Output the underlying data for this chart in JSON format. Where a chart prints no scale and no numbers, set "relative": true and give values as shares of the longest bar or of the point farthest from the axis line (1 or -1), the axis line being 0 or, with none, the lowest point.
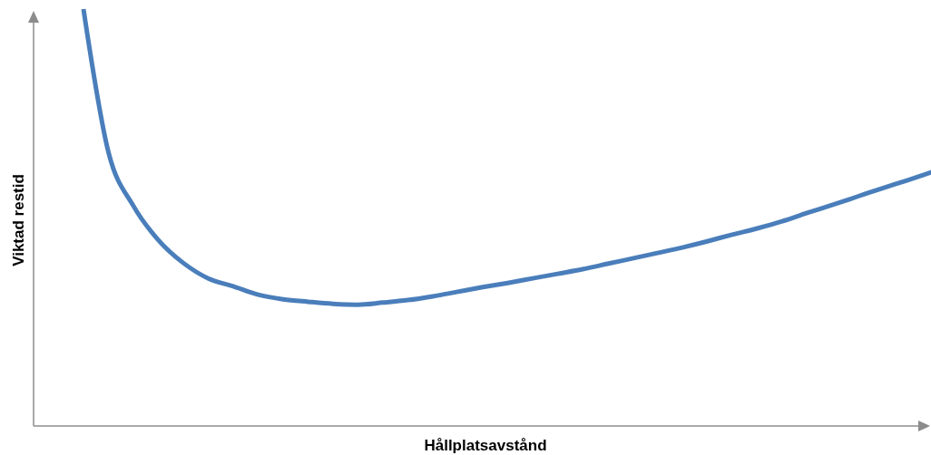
{
  "chart_data": {
    "type": "line",
    "xlabel": "Hållplatsavstånd",
    "ylabel": "Viktad restid",
    "relative": true,
    "tick_labels": false,
    "categories": [
      null,
      null,
      null,
      null,
      null,
      null,
      null,
      null,
      null,
      null,
      null,
      null,
      null,
      null,
      null,
      null,
      null,
      null,
      null,
      null,
      null,
      null,
      null,
      null,
      null,
      null,
      null,
      null,
      null,
      null,
      null,
      null,
      null,
      null,
      null,
      null,
      null
    ],
    "series": [
      {
        "color": "#4a7ebb",
        "values": [
          null,
          null,
          1,
          0.657,
          0.528,
          0.446,
          0.391,
          0.354,
          0.335,
          0.315,
          0.304,
          0.298,
          0.293,
          0.291,
          0.296,
          0.302,
          0.311,
          0.322,
          0.333,
          0.343,
          0.354,
          0.365,
          0.376,
          0.389,
          0.402,
          0.415,
          0.428,
          0.443,
          0.459,
          0.474,
          0.491,
          0.511,
          0.53,
          0.55,
          0.57,
          0.589,
          0.609
        ]
      }
    ]
  }
}
